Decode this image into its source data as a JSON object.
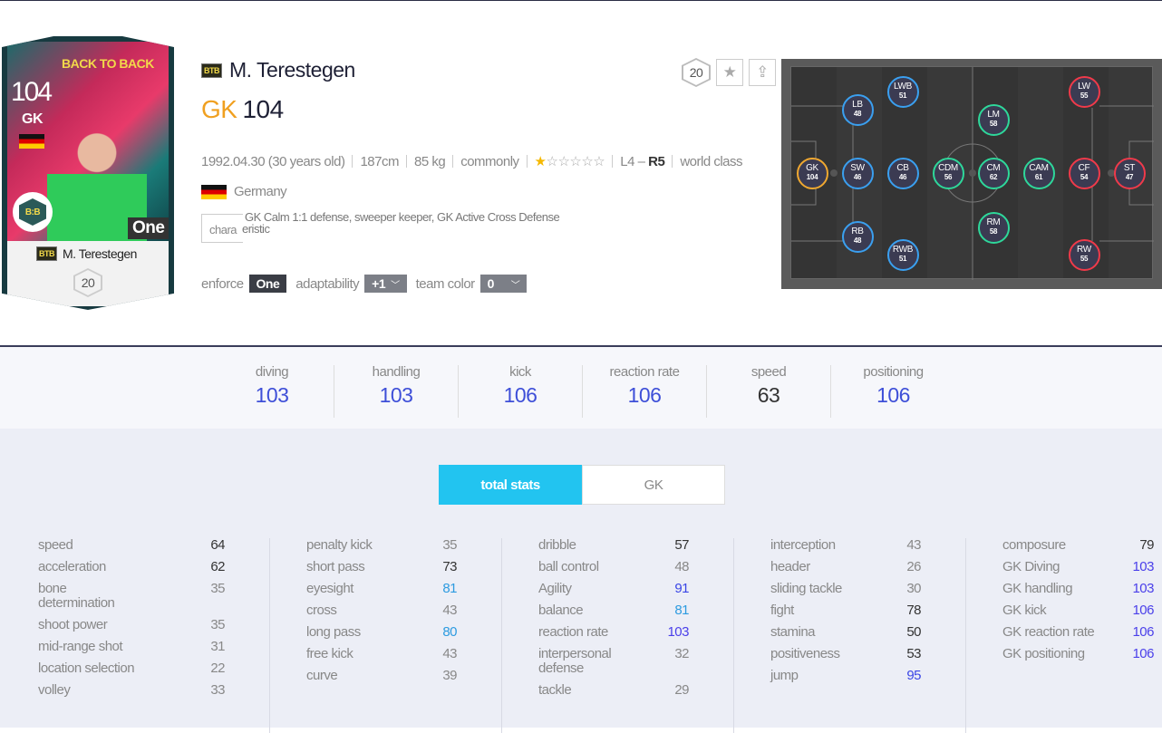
{
  "card": {
    "rating": "104",
    "position": "GK",
    "event": "BACK TO BACK",
    "badge": "B:B",
    "enforce": "One",
    "name": "M. Terestegen",
    "season": "BTB",
    "level": "20"
  },
  "player": {
    "season": "BTB",
    "name": "M. Terestegen",
    "position": "GK",
    "overall": "104",
    "birth": "1992.04.30 (30 years old)",
    "height": "187cm",
    "weight": "85 kg",
    "foot": "commonly",
    "stars_filled": 1,
    "stars_total": 6,
    "stars": "★",
    "stars_empty": "☆☆☆☆☆",
    "foot_left": "L4 –",
    "foot_right": "R5",
    "reputation": "world class",
    "nation": "Germany",
    "characteristic_label": "characteristic",
    "characteristic_label_tail": "eristic",
    "characteristic_label_head": "chara",
    "traits": "GK Calm 1:1 defense, sweeper keeper, GK Active Cross Defense"
  },
  "buttons": {
    "level": "20",
    "favorite_icon": "star-icon",
    "share_icon": "upload-arrow-icon"
  },
  "controls": {
    "enforce_label": "enforce",
    "enforce_value": "One",
    "adaptability_label": "adaptability",
    "adaptability_value": "+1",
    "team_color_label": "team color",
    "team_color_value": "0"
  },
  "pitch": [
    {
      "pos": "GK",
      "v": "104",
      "role": "gk"
    },
    {
      "pos": "SW",
      "v": "46",
      "role": "def"
    },
    {
      "pos": "CB",
      "v": "46",
      "role": "def"
    },
    {
      "pos": "LB",
      "v": "48",
      "role": "def"
    },
    {
      "pos": "RB",
      "v": "48",
      "role": "def"
    },
    {
      "pos": "LWB",
      "v": "51",
      "role": "def"
    },
    {
      "pos": "RWB",
      "v": "51",
      "role": "def"
    },
    {
      "pos": "CDM",
      "v": "56",
      "role": "mid"
    },
    {
      "pos": "CM",
      "v": "62",
      "role": "mid"
    },
    {
      "pos": "CAM",
      "v": "61",
      "role": "mid"
    },
    {
      "pos": "LM",
      "v": "58",
      "role": "mid"
    },
    {
      "pos": "RM",
      "v": "58",
      "role": "mid"
    },
    {
      "pos": "LW",
      "v": "55",
      "role": "att"
    },
    {
      "pos": "CF",
      "v": "54",
      "role": "att"
    },
    {
      "pos": "ST",
      "v": "47",
      "role": "att"
    },
    {
      "pos": "RW",
      "v": "55",
      "role": "att"
    }
  ],
  "role_colors": {
    "gk": "#f0a830",
    "def": "#3aa0f0",
    "mid": "#2ed89a",
    "att": "#f03a4a"
  },
  "summary": [
    {
      "label": "diving",
      "value": "103"
    },
    {
      "label": "handling",
      "value": "103"
    },
    {
      "label": "kick",
      "value": "106"
    },
    {
      "label": "reaction rate",
      "value": "106"
    },
    {
      "label": "speed",
      "value": "63"
    },
    {
      "label": "positioning",
      "value": "106"
    }
  ],
  "tabs": [
    {
      "label": "total stats",
      "active": true
    },
    {
      "label": "GK",
      "active": false
    }
  ],
  "stats": [
    [
      [
        "speed",
        "64"
      ],
      [
        "acceleration",
        "62"
      ],
      [
        "bone determination",
        "35"
      ],
      [
        "shoot power",
        "35"
      ],
      [
        "mid-range shot",
        "31"
      ],
      [
        "location selection",
        "22"
      ],
      [
        "volley",
        "33"
      ]
    ],
    [
      [
        "penalty kick",
        "35"
      ],
      [
        "short pass",
        "73"
      ],
      [
        "eyesight",
        "81"
      ],
      [
        "cross",
        "43"
      ],
      [
        "long pass",
        "80"
      ],
      [
        "free kick",
        "43"
      ],
      [
        "curve",
        "39"
      ]
    ],
    [
      [
        "dribble",
        "57"
      ],
      [
        "ball control",
        "48"
      ],
      [
        "Agility",
        "91"
      ],
      [
        "balance",
        "81"
      ],
      [
        "reaction rate",
        "103"
      ],
      [
        "interpersonal defense",
        "32"
      ],
      [
        "tackle",
        "29"
      ]
    ],
    [
      [
        "interception",
        "43"
      ],
      [
        "header",
        "26"
      ],
      [
        "sliding tackle",
        "30"
      ],
      [
        "fight",
        "78"
      ],
      [
        "stamina",
        "50"
      ],
      [
        "positiveness",
        "53"
      ],
      [
        "jump",
        "95"
      ]
    ],
    [
      [
        "composure",
        "79"
      ],
      [
        "GK Diving",
        "103"
      ],
      [
        "GK handling",
        "103"
      ],
      [
        "GK kick",
        "106"
      ],
      [
        "GK reaction rate",
        "106"
      ],
      [
        "GK positioning",
        "106"
      ]
    ]
  ]
}
